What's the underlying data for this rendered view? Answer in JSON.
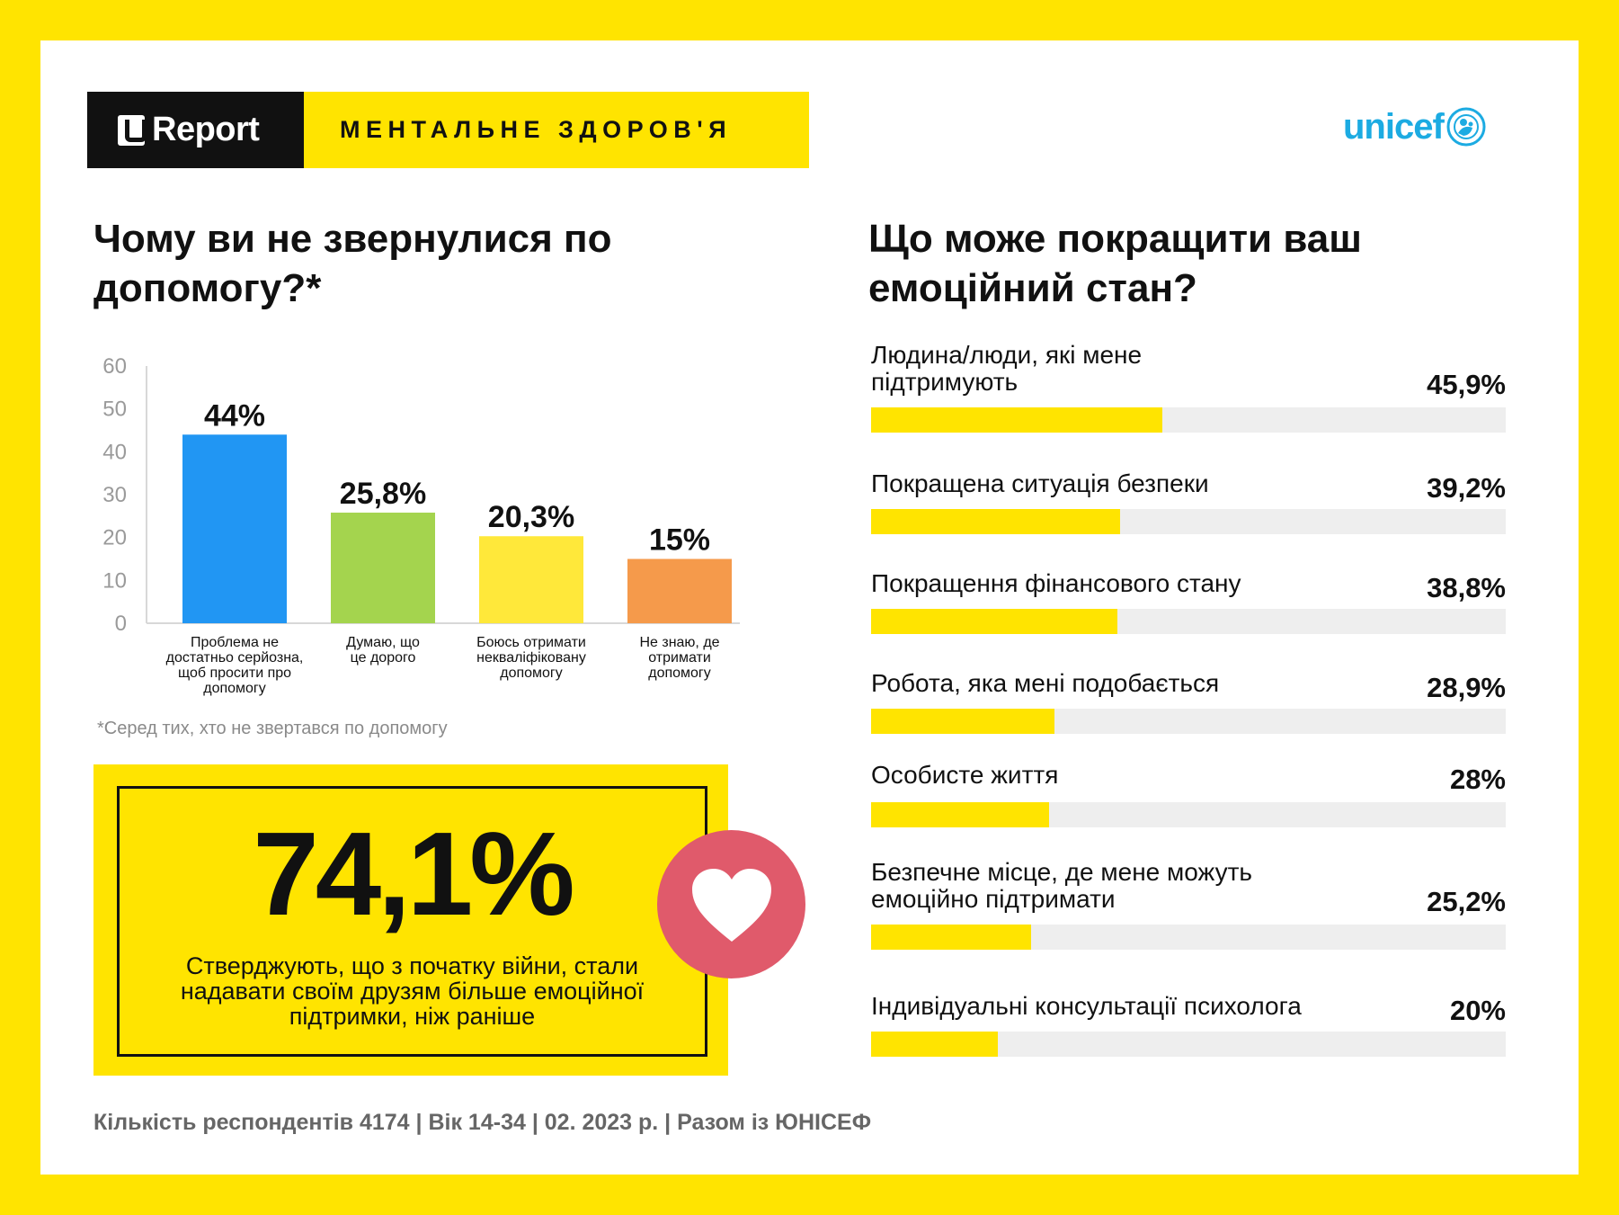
{
  "header": {
    "brand": "Report",
    "topic": "МЕНТАЛЬНЕ ЗДОРОВ'Я",
    "partner": "unicef"
  },
  "left": {
    "question": "Чому ви не звернулися по допомогу?*",
    "footnote": "*Серед тих, хто не звертався по допомогу"
  },
  "right": {
    "question": "Що може покращити ваш емоційний стан?"
  },
  "highlight": {
    "value": "74,1%",
    "text": "Стверджують, що з початку війни, стали надавати своїм друзям більше емоційної підтримки, ніж раніше"
  },
  "footer": "Кількість респондентів 4174 |  Вік 14-34 | 02. 2023 р. | Разом із ЮНІСЕФ",
  "colors": {
    "yellow": "#FFE400",
    "blue": "#2196F3",
    "green": "#A4D44E",
    "light_yellow": "#FFE83A",
    "orange": "#F59A4B",
    "heart": "#E05A6B",
    "unicef_blue": "#1CABE2"
  },
  "chart_data": [
    {
      "type": "bar",
      "title": "Чому ви не звернулися по допомогу?*",
      "ylim": [
        0,
        60
      ],
      "yticks": [
        0,
        10,
        20,
        30,
        40,
        50,
        60
      ],
      "categories": [
        "Проблема не достатньо серйозна, щоб просити про допомогу",
        "Думаю, що це дорого",
        "Боюсь отримати некваліфіковану допомогу",
        "Не знаю, де отримати допомогу"
      ],
      "category_lines": [
        [
          "Проблема не",
          "достатньо серйозна,",
          "щоб просити про",
          "допомогу"
        ],
        [
          "Думаю, що",
          "це дорого"
        ],
        [
          "Боюсь отримати",
          "некваліфіковану",
          "допомогу"
        ],
        [
          "Не знаю, де",
          "отримати",
          "допомогу"
        ]
      ],
      "values": [
        44,
        25.8,
        20.3,
        15
      ],
      "data_labels": [
        "44%",
        "25,8%",
        "20,3%",
        "15%"
      ],
      "bar_colors": [
        "#2196F3",
        "#A4D44E",
        "#FFE83A",
        "#F59A4B"
      ],
      "grid": false
    },
    {
      "type": "bar",
      "orientation": "horizontal",
      "title": "Що може покращити ваш емоційний стан?",
      "xlim": [
        0,
        100
      ],
      "categories": [
        "Людина/люди, які мене підтримують",
        "Покращена ситуація безпеки",
        "Покращення фінансового стану",
        "Робота, яка мені подобається",
        "Особисте життя",
        "Безпечне місце, де мене можуть емоційно підтримати",
        "Індивідуальні консультації психолога"
      ],
      "category_lines": [
        [
          "Людина/люди, які мене",
          "підтримують"
        ],
        [
          "Покращена ситуація безпеки"
        ],
        [
          "Покращення фінансового стану"
        ],
        [
          "Робота, яка мені подобається"
        ],
        [
          "Особисте життя"
        ],
        [
          "Безпечне місце, де мене можуть",
          "емоційно підтримати"
        ],
        [
          "Індивідуальні консультації психолога"
        ]
      ],
      "values": [
        45.9,
        39.2,
        38.8,
        28.9,
        28,
        25.2,
        20
      ],
      "data_labels": [
        "45,9%",
        "39,2%",
        "38,8%",
        "28,9%",
        "28%",
        "25,2%",
        "20%"
      ],
      "bar_color": "#FFE400",
      "track_color": "#EEEEEE"
    }
  ]
}
